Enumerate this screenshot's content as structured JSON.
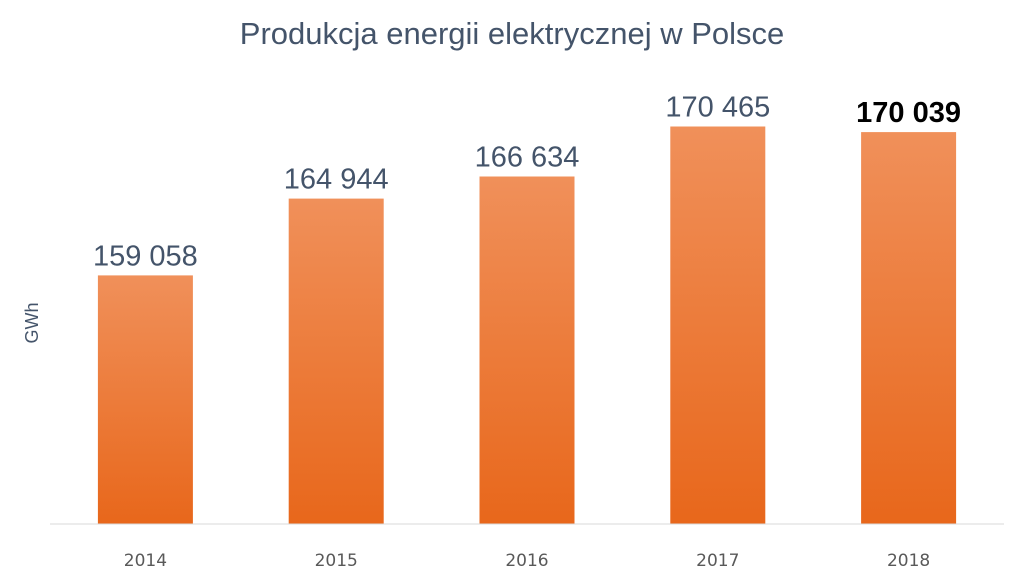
{
  "chart_data": {
    "type": "bar",
    "title": "Produkcja energii elektrycznej w Polsce",
    "xlabel": "",
    "ylabel": "GWh",
    "categories": [
      "2014",
      "2015",
      "2016",
      "2017",
      "2018"
    ],
    "values": [
      159058,
      164944,
      166634,
      170465,
      170039
    ],
    "data_labels": [
      "159 058",
      "164 944",
      "166 634",
      "170 465",
      "170 039"
    ],
    "highlighted_label_index": 4,
    "ylim": [
      140000,
      172500
    ],
    "y_axis_visible": false,
    "grid": false,
    "legend": "none",
    "colors": {
      "bar_top": "#f0905a",
      "bar_bottom": "#e8671b",
      "title": "#44546a",
      "data_label": "#44546a",
      "highlighted_label": "#000000",
      "tick_label": "#595959",
      "baseline": "#d9d9d9"
    }
  }
}
